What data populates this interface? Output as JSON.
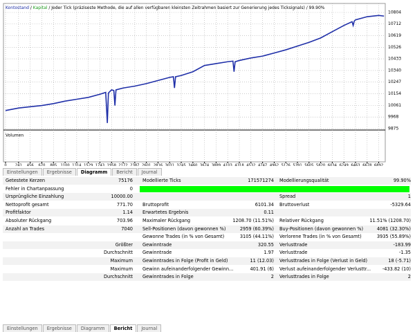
{
  "chart": {
    "legend": [
      "Kontostand",
      "Kapital",
      "Jeder Tick (präziseste Methode, die auf allen verfügbaren kleinsten Zeitrahmen basiert zur Generierung jedes Ticksignals) / 99.90%"
    ],
    "legend_colors": [
      "#1a2ca6",
      "#1a9a1a",
      "#000000"
    ],
    "color": "#1f2fa8",
    "grid": true,
    "volume_label": "Volumen",
    "ylim": [
      9875,
      10804
    ],
    "yticks": [
      9875,
      9968,
      10061,
      10154,
      10247,
      10340,
      10433,
      10526,
      10619,
      10712,
      10804
    ],
    "xlim": [
      0,
      7000
    ],
    "xticks": [
      0,
      241,
      456,
      670,
      885,
      1100,
      1314,
      1529,
      1743,
      1958,
      2172,
      2387,
      2601,
      2816,
      3031,
      3245,
      3460,
      3674,
      3889,
      4103,
      4318,
      4532,
      4747,
      4962,
      5176,
      5391,
      5605,
      5820,
      6034,
      6249,
      6463,
      6678,
      6892
    ],
    "x": [
      0,
      241,
      456,
      670,
      885,
      1100,
      1314,
      1529,
      1743,
      1850,
      1880,
      1900,
      1958,
      2000,
      2020,
      2040,
      2172,
      2387,
      2601,
      2816,
      3031,
      3100,
      3120,
      3140,
      3245,
      3460,
      3674,
      3889,
      4103,
      4200,
      4220,
      4240,
      4318,
      4532,
      4747,
      4962,
      5176,
      5391,
      5605,
      5820,
      6034,
      6249,
      6400,
      6420,
      6440,
      6463,
      6678,
      6892,
      6990
    ],
    "values": [
      10020,
      10040,
      10050,
      10060,
      10075,
      10095,
      10110,
      10125,
      10150,
      10165,
      9920,
      10160,
      10185,
      10180,
      10060,
      10185,
      10200,
      10215,
      10235,
      10260,
      10285,
      10290,
      10200,
      10290,
      10300,
      10330,
      10380,
      10395,
      10410,
      10415,
      10330,
      10410,
      10420,
      10440,
      10455,
      10480,
      10505,
      10535,
      10565,
      10600,
      10650,
      10700,
      10730,
      10700,
      10735,
      10745,
      10770,
      10780,
      10775
    ]
  },
  "tabs_top": {
    "items": [
      "Einstellungen",
      "Ergebnisse",
      "Diagramm",
      "Bericht",
      "Journal"
    ],
    "active": 2
  },
  "table": {
    "quality_bar_row": 1,
    "quality_bar_color": "#00ff00",
    "rows": [
      [
        "Getestete Kerzen",
        "75176",
        "Modellierte Ticks",
        "171571274",
        "Modellierungsqualität",
        "99.90%"
      ],
      [
        "Fehler in Chartanpassung",
        "0",
        null,
        null,
        null,
        null
      ],
      [
        "Ursprüngliche Einzahlung",
        "10000.00",
        null,
        null,
        "Spread",
        "1"
      ],
      [
        "Nettoprofit gesamt",
        "771.70",
        "Bruttoprofit",
        "6101.34",
        "Bruttoverlust",
        "-5329.64"
      ],
      [
        "Profitfaktor",
        "1.14",
        "Erwartetes Ergebnis",
        "0.11",
        null,
        null
      ],
      [
        "Absoluter Rückgang",
        "703.96",
        "Maximaler Rückgang",
        "1208.70 (11.51%)",
        "Relativer Rückgang",
        "11.51% (1208.70)"
      ],
      [
        "Anzahl an Trades",
        "7040",
        "Sell-Positionen (davon gewonnen %)",
        "2959 (60.39%)",
        "Buy-Positionen (davon gewonnen %)",
        "4081 (32.30%)"
      ],
      [
        null,
        null,
        "Gewonne Trades (in % von Gesamt)",
        "3105 (44.11%)",
        "Verlorene Trades (in % von Gesamt)",
        "3935 (55.89%)"
      ],
      [
        null,
        "Größter",
        "Gewinntrade",
        "320.55",
        "Verlusttrade",
        "-183.99"
      ],
      [
        null,
        "Durchschnitt",
        "Gewinntrade",
        "1.97",
        "Verlusttrade",
        "-1.35"
      ],
      [
        null,
        "Maximum",
        "Gewinntrades in Folge (Profit in Geld)",
        "11 (12.03)",
        "Verlusttrades in Folge (Verlust in Geld)",
        "18 (-5.71)"
      ],
      [
        null,
        "Maximum",
        "Gewinn aufeinanderfolgender Gewinn...",
        "401.91 (6)",
        "Verlust aufeinanderfolgender Verlusttr...",
        "-433.82 (10)"
      ],
      [
        null,
        "Durchschnitt",
        "Gewinntrades in Folge",
        "2",
        "Verlusttrades in Folge",
        "2"
      ]
    ]
  },
  "tabs_bottom": {
    "items": [
      "Einstellungen",
      "Ergebnisse",
      "Diagramm",
      "Bericht",
      "Journal"
    ],
    "active": 3
  }
}
